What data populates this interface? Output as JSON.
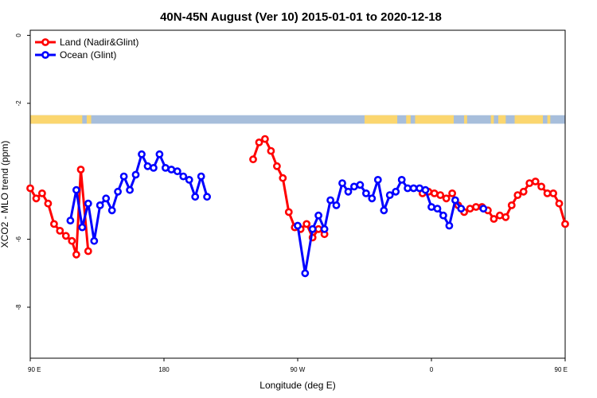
{
  "chart_data": {
    "type": "line",
    "title": "40N-45N August (Ver 10)   2015-01-01 to 2020-12-18",
    "xlabel": "Longitude (deg E)",
    "ylabel": "XCO2 - MLO trend (ppm)",
    "xlim": [
      90,
      450
    ],
    "ylim": [
      -9.5,
      0.15
    ],
    "x_ticks": [
      {
        "value": 90,
        "label": "90 E"
      },
      {
        "value": 180,
        "label": "180"
      },
      {
        "value": 270,
        "label": "90 W"
      },
      {
        "value": 360,
        "label": "0"
      },
      {
        "value": 450,
        "label": "90 E"
      },
      {
        "value": 540,
        "label": "180"
      }
    ],
    "y_ticks": [
      {
        "value": 0,
        "label": "0"
      },
      {
        "value": -2,
        "label": "-2"
      },
      {
        "value": -6,
        "label": "-6"
      },
      {
        "value": -8,
        "label": "-8"
      }
    ],
    "grid": false,
    "legend_position": "top-left",
    "land_sea_strip": {
      "y_top": -2.35,
      "y_bottom": -2.6,
      "ocean_color": "#a7bedb",
      "land_color": "#fbd66f",
      "land_ranges": [
        [
          90,
          125
        ],
        [
          128,
          131
        ],
        [
          315,
          337
        ],
        [
          343,
          346
        ],
        [
          349,
          375
        ],
        [
          382,
          384
        ],
        [
          400,
          402
        ],
        [
          405,
          410
        ],
        [
          416,
          435
        ],
        [
          438,
          440
        ]
      ]
    },
    "series": [
      {
        "name": "Land (Nadir&Glint)",
        "color": "#ff0000",
        "segments": [
          [
            [
              90,
              -4.5
            ],
            [
              94,
              -4.8
            ],
            [
              98,
              -4.65
            ],
            [
              102,
              -4.95
            ],
            [
              106,
              -5.55
            ],
            [
              110,
              -5.75
            ],
            [
              114,
              -5.9
            ],
            [
              118,
              -6.05
            ],
            [
              121,
              -6.45
            ],
            [
              124,
              -3.95
            ],
            [
              129,
              -6.35
            ]
          ],
          [
            [
              240,
              -3.65
            ],
            [
              244,
              -3.15
            ],
            [
              248,
              -3.05
            ],
            [
              252,
              -3.4
            ],
            [
              256,
              -3.85
            ],
            [
              260,
              -4.2
            ],
            [
              264,
              -5.2
            ],
            [
              268,
              -5.65
            ],
            [
              272,
              -5.7
            ],
            [
              276,
              -5.55
            ],
            [
              280,
              -5.95
            ],
            [
              284,
              -5.7
            ],
            [
              288,
              -5.85
            ]
          ],
          [
            [
              354,
              -4.65
            ],
            [
              358,
              -4.6
            ],
            [
              362,
              -4.65
            ],
            [
              366,
              -4.7
            ],
            [
              370,
              -4.8
            ],
            [
              374,
              -4.65
            ],
            [
              378,
              -5.0
            ],
            [
              382,
              -5.2
            ],
            [
              386,
              -5.1
            ],
            [
              390,
              -5.05
            ],
            [
              394,
              -5.05
            ],
            [
              398,
              -5.15
            ],
            [
              402,
              -5.4
            ],
            [
              406,
              -5.3
            ],
            [
              410,
              -5.35
            ],
            [
              414,
              -5.0
            ],
            [
              418,
              -4.7
            ],
            [
              422,
              -4.6
            ],
            [
              426,
              -4.35
            ],
            [
              430,
              -4.3
            ],
            [
              434,
              -4.45
            ],
            [
              438,
              -4.65
            ],
            [
              442,
              -4.65
            ],
            [
              446,
              -4.95
            ],
            [
              450,
              -5.55
            ]
          ]
        ]
      },
      {
        "name": "Ocean (Glint)",
        "color": "#0000ff",
        "segments": [
          [
            [
              117,
              -5.45
            ],
            [
              121,
              -4.55
            ],
            [
              125,
              -5.65
            ],
            [
              129,
              -4.95
            ],
            [
              133,
              -6.05
            ],
            [
              137,
              -5.0
            ],
            [
              141,
              -4.8
            ],
            [
              145,
              -5.15
            ],
            [
              149,
              -4.6
            ],
            [
              153,
              -4.15
            ],
            [
              157,
              -4.55
            ],
            [
              161,
              -4.1
            ],
            [
              165,
              -3.5
            ],
            [
              169,
              -3.85
            ],
            [
              173,
              -3.9
            ],
            [
              177,
              -3.5
            ],
            [
              181,
              -3.9
            ],
            [
              185,
              -3.95
            ],
            [
              189,
              -4.0
            ],
            [
              193,
              -4.15
            ],
            [
              197,
              -4.25
            ],
            [
              201,
              -4.75
            ],
            [
              205,
              -4.15
            ],
            [
              209,
              -4.75
            ]
          ],
          [
            [
              270,
              -5.6
            ],
            [
              275,
              -7.0
            ],
            [
              280,
              -5.7
            ],
            [
              284,
              -5.3
            ],
            [
              288,
              -5.7
            ],
            [
              292,
              -4.85
            ],
            [
              296,
              -5.0
            ],
            [
              300,
              -4.35
            ],
            [
              304,
              -4.6
            ],
            [
              308,
              -4.45
            ],
            [
              312,
              -4.4
            ],
            [
              316,
              -4.65
            ],
            [
              320,
              -4.8
            ],
            [
              324,
              -4.25
            ],
            [
              328,
              -5.15
            ],
            [
              332,
              -4.7
            ],
            [
              336,
              -4.6
            ],
            [
              340,
              -4.25
            ],
            [
              344,
              -4.5
            ],
            [
              348,
              -4.5
            ],
            [
              352,
              -4.5
            ],
            [
              356,
              -4.55
            ],
            [
              360,
              -5.05
            ],
            [
              364,
              -5.1
            ],
            [
              368,
              -5.3
            ],
            [
              372,
              -5.6
            ],
            [
              376,
              -4.85
            ],
            [
              380,
              -5.1
            ]
          ],
          [
            [
              395,
              -5.1
            ]
          ]
        ]
      }
    ]
  }
}
